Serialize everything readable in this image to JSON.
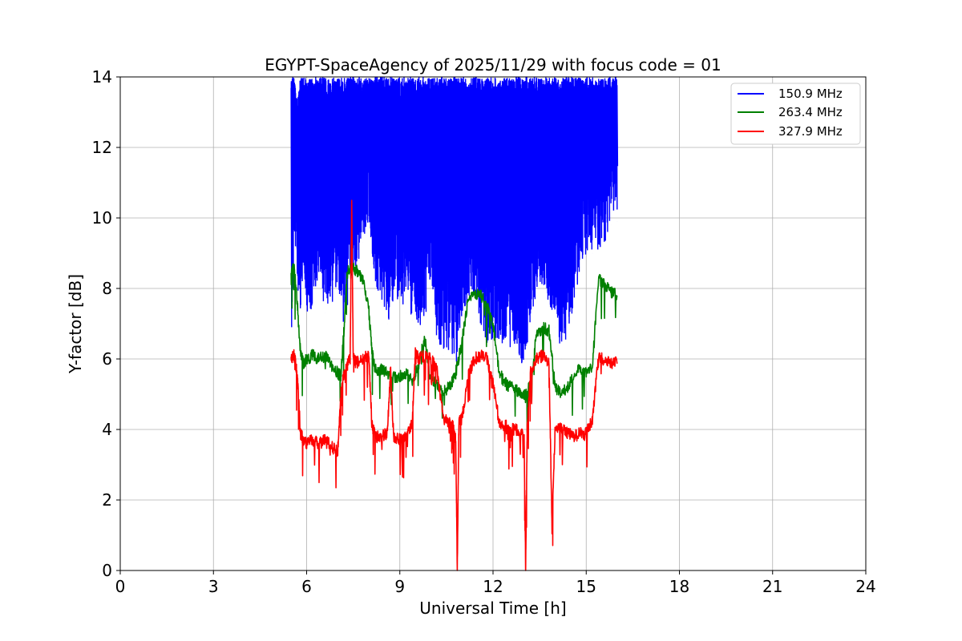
{
  "chart_data": {
    "type": "line",
    "title": "EGYPT-SpaceAgency of 2025/11/29 with focus code = 01",
    "xlabel": "Universal Time [h]",
    "ylabel": "Y-factor [dB]",
    "xlim": [
      0,
      24
    ],
    "ylim": [
      0,
      14
    ],
    "xticks": [
      0,
      3,
      6,
      9,
      12,
      15,
      18,
      21,
      24
    ],
    "yticks": [
      0,
      2,
      4,
      6,
      8,
      10,
      12,
      14
    ],
    "grid": true,
    "legend_position": "top-right",
    "series": [
      {
        "name": "150.9 MHz",
        "color": "#0000ff",
        "x": [
          5.5,
          5.6,
          5.7,
          5.8,
          5.9,
          6.0,
          6.2,
          6.4,
          6.6,
          6.8,
          7.0,
          7.2,
          7.4,
          7.6,
          7.8,
          8.0,
          8.2,
          8.4,
          8.6,
          8.8,
          9.0,
          9.2,
          9.4,
          9.6,
          9.8,
          10.0,
          10.2,
          10.4,
          10.6,
          10.8,
          11.0,
          11.2,
          11.4,
          11.6,
          11.8,
          12.0,
          12.2,
          12.4,
          12.6,
          12.8,
          13.0,
          13.2,
          13.4,
          13.6,
          13.8,
          14.0,
          14.2,
          14.4,
          14.6,
          14.8,
          15.0,
          15.2,
          15.4,
          15.6,
          15.8,
          16.0
        ],
        "lower": [
          6.9,
          9.5,
          8.0,
          7.0,
          8.6,
          7.2,
          7.5,
          8.1,
          7.3,
          7.6,
          7.9,
          6.8,
          8.2,
          8.5,
          9.3,
          9.9,
          8.0,
          7.6,
          7.0,
          7.8,
          7.6,
          7.3,
          7.1,
          6.8,
          7.2,
          7.9,
          6.4,
          6.1,
          6.3,
          5.8,
          7.0,
          7.6,
          7.9,
          6.8,
          6.4,
          6.5,
          6.2,
          6.4,
          6.3,
          5.9,
          5.6,
          7.2,
          7.8,
          8.1,
          7.5,
          6.9,
          6.0,
          6.8,
          7.5,
          8.6,
          8.9,
          9.0,
          9.1,
          9.3,
          9.8,
          9.9
        ],
        "upper": [
          14,
          14,
          13.3,
          14,
          14,
          14,
          14,
          14,
          14,
          14,
          14,
          14,
          14,
          14,
          14,
          14,
          14,
          14,
          14,
          14,
          14,
          14,
          14,
          14,
          14,
          14,
          14,
          14,
          14,
          14,
          14,
          14,
          14,
          14,
          14,
          14,
          14,
          14,
          14,
          14,
          14,
          14,
          14,
          14,
          14,
          14,
          14,
          14,
          14,
          14,
          14,
          14,
          14,
          14,
          14,
          14
        ]
      },
      {
        "name": "263.4 MHz",
        "color": "#008000",
        "x": [
          5.5,
          5.6,
          5.7,
          5.8,
          5.9,
          6.0,
          6.2,
          6.4,
          6.6,
          6.8,
          7.0,
          7.1,
          7.2,
          7.3,
          7.4,
          7.6,
          7.8,
          8.0,
          8.1,
          8.2,
          8.4,
          8.6,
          8.8,
          9.0,
          9.2,
          9.4,
          9.6,
          9.8,
          10.0,
          10.2,
          10.4,
          10.6,
          10.8,
          11.0,
          11.2,
          11.4,
          11.6,
          11.8,
          12.0,
          12.2,
          12.4,
          12.6,
          12.8,
          13.0,
          13.2,
          13.4,
          13.6,
          13.8,
          14.0,
          14.2,
          14.4,
          14.6,
          14.8,
          15.0,
          15.2,
          15.4,
          15.6,
          15.8,
          16.0
        ],
        "values": [
          8.5,
          8.6,
          7.6,
          6.2,
          5.9,
          6.0,
          6.1,
          6.0,
          6.1,
          5.8,
          5.6,
          5.5,
          6.8,
          8.4,
          8.6,
          8.5,
          8.3,
          7.4,
          6.2,
          5.7,
          5.7,
          5.6,
          5.5,
          5.5,
          5.6,
          5.4,
          5.8,
          6.6,
          5.4,
          5.3,
          5.1,
          5.2,
          5.6,
          6.5,
          7.7,
          7.9,
          7.8,
          7.5,
          7.0,
          5.6,
          5.3,
          5.2,
          5.1,
          5.0,
          5.2,
          6.7,
          6.9,
          6.8,
          5.2,
          5.0,
          5.2,
          5.6,
          5.7,
          5.6,
          5.8,
          8.3,
          8.1,
          7.9,
          7.8
        ]
      },
      {
        "name": "327.9 MHz",
        "color": "#ff0000",
        "x": [
          5.5,
          5.6,
          5.7,
          5.8,
          5.9,
          6.0,
          6.2,
          6.4,
          6.6,
          6.8,
          7.0,
          7.1,
          7.2,
          7.3,
          7.4,
          7.45,
          7.5,
          7.6,
          7.8,
          8.0,
          8.1,
          8.2,
          8.4,
          8.6,
          8.7,
          8.8,
          9.0,
          9.2,
          9.4,
          9.5,
          9.6,
          9.8,
          10.0,
          10.2,
          10.4,
          10.6,
          10.7,
          10.8,
          10.85,
          10.9,
          11.0,
          11.2,
          11.4,
          11.6,
          11.8,
          12.0,
          12.2,
          12.4,
          12.6,
          12.8,
          13.0,
          13.05,
          13.1,
          13.2,
          13.4,
          13.6,
          13.8,
          13.9,
          14.0,
          14.2,
          14.4,
          14.6,
          14.8,
          15.0,
          15.2,
          15.4,
          15.6,
          15.8,
          16.0
        ],
        "values": [
          6.0,
          6.1,
          5.6,
          3.9,
          3.7,
          3.6,
          3.7,
          3.6,
          3.7,
          3.5,
          3.4,
          5.0,
          5.6,
          5.8,
          6.0,
          10.4,
          6.0,
          5.9,
          6.0,
          6.1,
          4.2,
          3.8,
          3.8,
          3.9,
          5.7,
          3.8,
          3.7,
          3.8,
          4.2,
          6.2,
          6.0,
          6.1,
          6.0,
          5.7,
          4.3,
          4.2,
          4.1,
          3.7,
          0.0,
          4.2,
          4.3,
          5.5,
          6.0,
          6.1,
          6.0,
          5.3,
          4.2,
          4.1,
          4.0,
          4.0,
          3.9,
          0.0,
          4.0,
          5.6,
          6.0,
          6.1,
          5.9,
          1.2,
          4.1,
          4.0,
          3.9,
          3.8,
          3.9,
          3.9,
          4.3,
          6.1,
          5.9,
          5.9,
          5.9
        ]
      }
    ]
  }
}
